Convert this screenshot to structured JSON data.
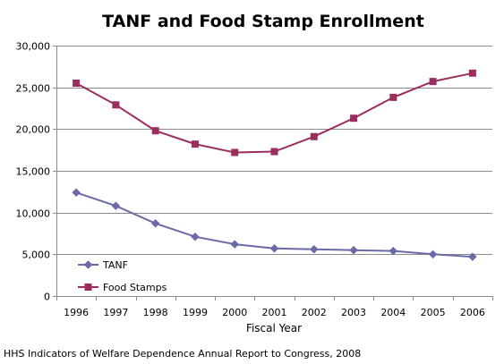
{
  "source_note": "HHS Indicators of Welfare Dependence Annual Report to Congress, 2008",
  "chart_data": {
    "type": "line",
    "title": "TANF and Food Stamp Enrollment",
    "xlabel": "Fiscal Year",
    "ylabel": "",
    "categories": [
      "1996",
      "1997",
      "1998",
      "1999",
      "2000",
      "2001",
      "2002",
      "2003",
      "2004",
      "2005",
      "2006"
    ],
    "ylim": [
      0,
      30000
    ],
    "yticks": [
      "0",
      "5,000",
      "10,000",
      "15,000",
      "20,000",
      "25,000",
      "30,000"
    ],
    "ytick_values": [
      0,
      5000,
      10000,
      15000,
      20000,
      25000,
      30000
    ],
    "grid": true,
    "legend_position": "bottom-left",
    "series": [
      {
        "name": "TANF",
        "marker": "diamond",
        "color": "#6a6aa8",
        "values": [
          12400,
          10800,
          8700,
          7100,
          6200,
          5700,
          5600,
          5500,
          5400,
          5000,
          4700
        ]
      },
      {
        "name": "Food Stamps",
        "marker": "square",
        "color": "#9b2d5f",
        "values": [
          25500,
          22900,
          19800,
          18200,
          17200,
          17300,
          19100,
          21300,
          23800,
          25700,
          26700
        ]
      }
    ]
  }
}
